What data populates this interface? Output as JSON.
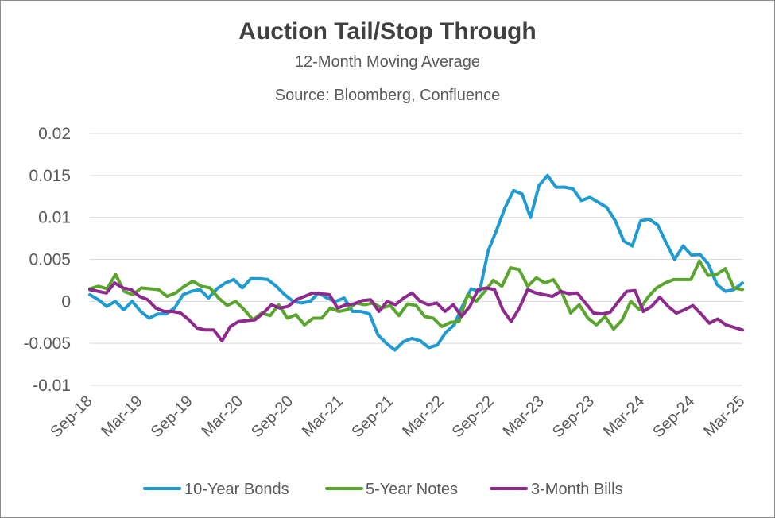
{
  "chart_data": {
    "type": "line",
    "title": "Auction Tail/Stop Through",
    "subtitle": "12-Month Moving Average",
    "source": "Source: Bloomberg, Confluence",
    "ylim": [
      -0.01,
      0.02
    ],
    "yticks": [
      "0.02",
      "0.015",
      "0.01",
      "0.005",
      "0",
      "-0.005",
      "-0.01"
    ],
    "ytick_values": [
      0.02,
      0.015,
      0.01,
      0.005,
      0,
      -0.005,
      -0.01
    ],
    "xticks": [
      "Sep-18",
      "Mar-19",
      "Sep-19",
      "Mar-20",
      "Sep-20",
      "Mar-21",
      "Sep-21",
      "Mar-22",
      "Sep-22",
      "Mar-23",
      "Sep-23",
      "Mar-24",
      "Sep-24",
      "Mar-25"
    ],
    "x_start": "Sep-18",
    "x_end": "Mar-25",
    "grid": true,
    "legend_position": "bottom",
    "series": [
      {
        "name": "10-Year Bonds",
        "color": "#1f9bd1",
        "values": [
          0.0008,
          0.0002,
          -0.0006,
          0.0,
          -0.001,
          0.0,
          -0.0012,
          -0.002,
          -0.0015,
          -0.0015,
          -0.0008,
          0.0008,
          0.0012,
          0.0014,
          0.0004,
          0.0015,
          0.0022,
          0.0026,
          0.0016,
          0.0027,
          0.0027,
          0.0026,
          0.0018,
          0.0008,
          0.0,
          -0.0002,
          0.0,
          0.001,
          0.0004,
          0.0,
          0.0004,
          -0.0012,
          -0.0012,
          -0.0015,
          -0.004,
          -0.005,
          -0.0058,
          -0.0048,
          -0.0044,
          -0.0047,
          -0.0055,
          -0.0052,
          -0.0037,
          -0.0028,
          -0.0005,
          0.0015,
          0.0012,
          0.006,
          0.0085,
          0.0112,
          0.0132,
          0.0128,
          0.01,
          0.0138,
          0.015,
          0.0136,
          0.0136,
          0.0134,
          0.012,
          0.0124,
          0.0118,
          0.0112,
          0.0096,
          0.0072,
          0.0066,
          0.0096,
          0.0098,
          0.0091,
          0.007,
          0.005,
          0.0066,
          0.0055,
          0.0056,
          0.0044,
          0.002,
          0.0012,
          0.0014,
          0.0022
        ]
      },
      {
        "name": "5-Year Notes",
        "color": "#5aa52e",
        "values": [
          0.0015,
          0.0018,
          0.0015,
          0.0032,
          0.0012,
          0.0008,
          0.0016,
          0.0015,
          0.0014,
          0.0006,
          0.001,
          0.0018,
          0.0024,
          0.0018,
          0.0016,
          0.0004,
          -0.0005,
          0.0,
          -0.001,
          -0.0022,
          -0.0014,
          -0.0017,
          -0.0004,
          -0.002,
          -0.0016,
          -0.0028,
          -0.002,
          -0.002,
          -0.0008,
          -0.0012,
          -0.001,
          -0.0002,
          -0.0004,
          -0.0002,
          -0.0008,
          -0.0005,
          -0.0017,
          -0.0003,
          -0.0005,
          -0.0018,
          -0.002,
          -0.003,
          -0.0025,
          -0.0024,
          0.0008,
          0.0,
          0.0012,
          0.0025,
          0.0018,
          0.004,
          0.0038,
          0.0018,
          0.0028,
          0.0022,
          0.0026,
          0.001,
          -0.0014,
          -0.0004,
          -0.002,
          -0.0028,
          -0.0018,
          -0.0033,
          -0.0022,
          0.0,
          -0.001,
          0.0005,
          0.0016,
          0.0022,
          0.0026,
          0.0026,
          0.0026,
          0.0048,
          0.0031,
          0.0032,
          0.0039,
          0.0016,
          0.0014
        ]
      },
      {
        "name": "3-Month Bills",
        "color": "#8e2a8e",
        "values": [
          0.0014,
          0.0012,
          0.001,
          0.0022,
          0.0016,
          0.0014,
          0.0006,
          0.0002,
          -0.0008,
          -0.0012,
          -0.0012,
          -0.0014,
          -0.0022,
          -0.0032,
          -0.0034,
          -0.0034,
          -0.0047,
          -0.003,
          -0.0024,
          -0.0023,
          -0.0022,
          -0.0014,
          -0.0004,
          -0.0008,
          -0.0006,
          0.0002,
          0.0006,
          0.001,
          0.0009,
          0.0008,
          -0.0008,
          -0.0004,
          -0.0003,
          0.0001,
          0.0002,
          -0.0012,
          0.0,
          -0.0004,
          0.0004,
          0.001,
          0.0,
          -0.0004,
          -0.0002,
          -0.0012,
          -0.0004,
          -0.0018,
          -0.0006,
          0.0014,
          0.0016,
          0.0014,
          -0.001,
          -0.0024,
          -0.0008,
          0.0014,
          0.001,
          0.0008,
          0.0006,
          0.0012,
          0.0009,
          0.001,
          -0.0002,
          -0.0014,
          -0.0015,
          -0.0013,
          0.0,
          0.0012,
          0.0013,
          -0.0012,
          -0.0006,
          0.0005,
          -0.0006,
          -0.0014,
          -0.001,
          -0.0005,
          -0.0015,
          -0.0026,
          -0.0021,
          -0.0028,
          -0.0031,
          -0.0034
        ]
      }
    ]
  }
}
